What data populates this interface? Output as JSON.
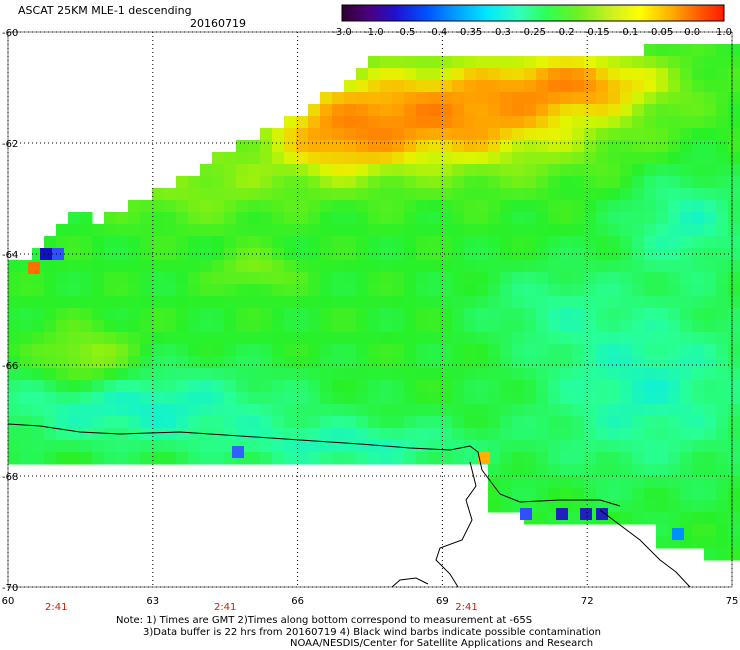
{
  "header": {
    "product": "ASCAT 25KM MLE-1 descending",
    "date": "20160719"
  },
  "colorbar": {
    "labels": [
      "-3.0",
      "-1.0",
      "-0.5",
      "-0.4",
      "-0.35",
      "-0.3",
      "-0.25",
      "-0.2",
      "-0.15",
      "-0.1",
      "-0.05",
      "0.0",
      "1.0"
    ],
    "colors": [
      "#300030",
      "#5a0090",
      "#1020e0",
      "#0090ff",
      "#00e0ff",
      "#30ffc0",
      "#30ff60",
      "#60f020",
      "#c0f020",
      "#ffff00",
      "#ffc000",
      "#ff7000",
      "#ff2000"
    ]
  },
  "map": {
    "lat_labels": [
      "-60",
      "-62",
      "-64",
      "-66",
      "-68",
      "-70"
    ],
    "lon_labels": [
      "60",
      "63",
      "66",
      "69",
      "72",
      "75"
    ],
    "time_labels": [
      "2:41",
      "2:41",
      "2:41"
    ],
    "time_color": "#cc2200"
  },
  "footer": {
    "line1": "Note: 1) Times are GMT 2)Times along bottom correspond to measurement at -65S",
    "line2": "3)Data buffer is 22 hrs from 20160719 4) Black wind barbs indicate possible contamination",
    "line3": "NOAA/NESDIS/Center for Satellite Applications and Research"
  }
}
